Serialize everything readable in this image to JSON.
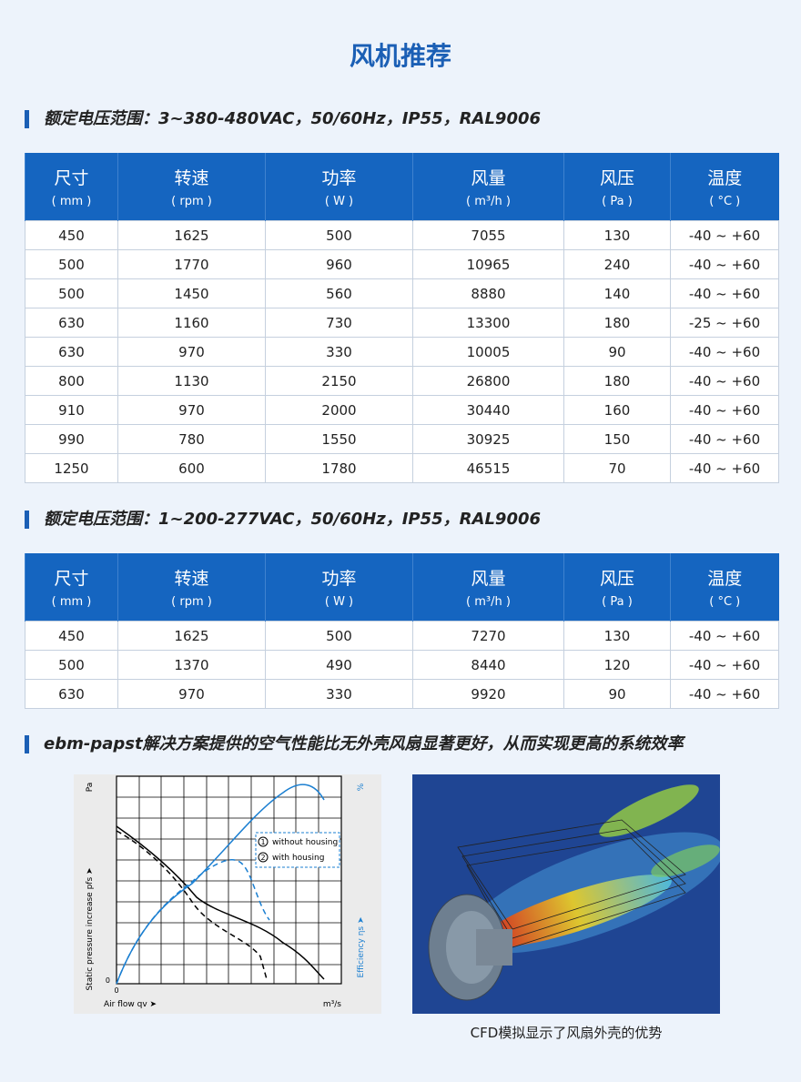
{
  "header": {
    "title": "风机推荐"
  },
  "sections": [
    {
      "heading": "额定电压范围：3~380-480VAC，50/60Hz，IP55，RAL9006",
      "table": {
        "columns": [
          {
            "name": "尺寸",
            "unit": "( mm )"
          },
          {
            "name": "转速",
            "unit": "( rpm )"
          },
          {
            "name": "功率",
            "unit": "( W )"
          },
          {
            "name": "风量",
            "unit": "( m³/h )"
          },
          {
            "name": "风压",
            "unit": "( Pa )"
          },
          {
            "name": "温度",
            "unit": "( °C )"
          }
        ],
        "rows": [
          [
            450,
            1625,
            500,
            7055,
            130,
            "-40 ~ +60"
          ],
          [
            500,
            1770,
            960,
            10965,
            240,
            "-40 ~ +60"
          ],
          [
            500,
            1450,
            560,
            8880,
            140,
            "-40 ~ +60"
          ],
          [
            630,
            1160,
            730,
            13300,
            180,
            "-25 ~ +60"
          ],
          [
            630,
            970,
            330,
            10005,
            90,
            "-40 ~ +60"
          ],
          [
            800,
            1130,
            2150,
            26800,
            180,
            "-40 ~ +60"
          ],
          [
            910,
            970,
            2000,
            30440,
            160,
            "-40 ~ +60"
          ],
          [
            990,
            780,
            1550,
            30925,
            150,
            "-40 ~ +60"
          ],
          [
            1250,
            600,
            1780,
            46515,
            70,
            "-40 ~ +60"
          ]
        ]
      }
    },
    {
      "heading": "额定电压范围：1~200-277VAC，50/60Hz，IP55，RAL9006",
      "table": {
        "columns": [
          {
            "name": "尺寸",
            "unit": "( mm )"
          },
          {
            "name": "转速",
            "unit": "( rpm )"
          },
          {
            "name": "功率",
            "unit": "( W )"
          },
          {
            "name": "风量",
            "unit": "( m³/h )"
          },
          {
            "name": "风压",
            "unit": "( Pa )"
          },
          {
            "name": "温度",
            "unit": "( °C )"
          }
        ],
        "rows": [
          [
            450,
            1625,
            500,
            7270,
            130,
            "-40 ~ +60"
          ],
          [
            500,
            1370,
            490,
            8440,
            120,
            "-40 ~ +60"
          ],
          [
            630,
            970,
            330,
            9920,
            90,
            "-40 ~ +60"
          ]
        ]
      }
    }
  ],
  "comparison": {
    "heading": "ebm-papst解决方案提供的空气性能比无外壳风扇显著更好，从而实现更高的系统效率",
    "figure": {
      "y_unit": "Pa",
      "y2_unit": "%",
      "y_label": "Static pressure increase  pfs ➤",
      "y2_label": "Efficiency  ηs ➤",
      "x_label": "Air flow  qv ➤",
      "x_unit": "m³/s",
      "origin_y": "0",
      "origin_x": "0",
      "legend": [
        {
          "marker": "1",
          "label": "without housing"
        },
        {
          "marker": "2",
          "label": "with housing"
        }
      ]
    },
    "cfd_caption": "CFD模拟显示了风扇外壳的优势"
  }
}
